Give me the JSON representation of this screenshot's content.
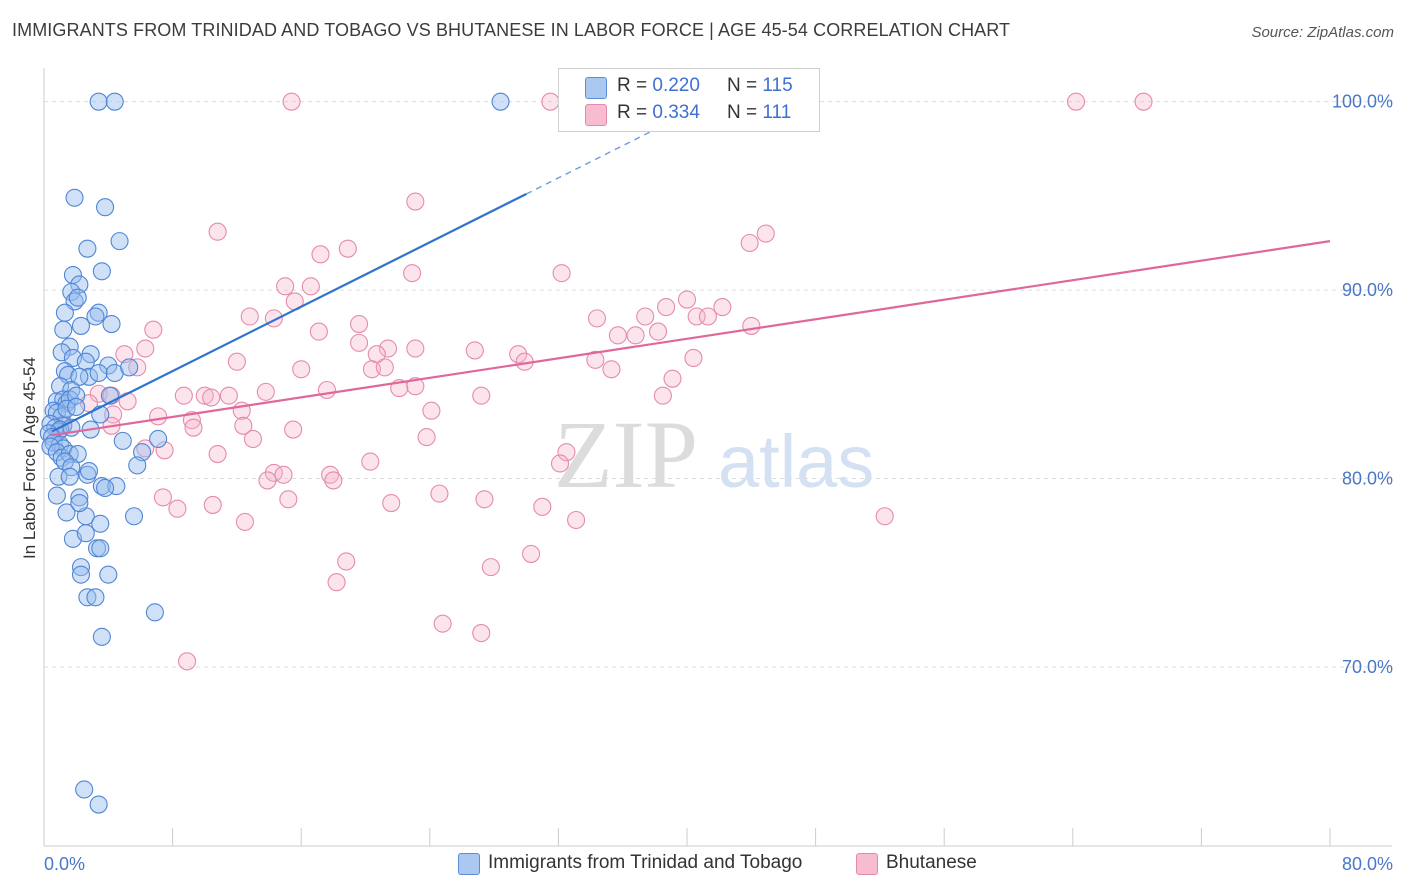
{
  "title": "IMMIGRANTS FROM TRINIDAD AND TOBAGO VS BHUTANESE IN LABOR FORCE | AGE 45-54 CORRELATION CHART",
  "source": "Source: ZipAtlas.com",
  "watermark": {
    "zip": "ZIP",
    "atlas": "atlas"
  },
  "legend": {
    "r_label": "R =",
    "n_label": "N =",
    "series": [
      {
        "name": "Immigrants from Trinidad and Tobago",
        "r": "0.220",
        "n": "115",
        "fill": "#aac8f0",
        "stroke": "#5a8fd8"
      },
      {
        "name": "Bhutanese",
        "r": "0.334",
        "n": "111",
        "fill": "#f7bcd0",
        "stroke": "#e48aab"
      }
    ]
  },
  "chart_data": {
    "type": "scatter",
    "title": "IMMIGRANTS FROM TRINIDAD AND TOBAGO VS BHUTANESE IN LABOR FORCE | AGE 45-54 CORRELATION CHART",
    "xlabel": "",
    "ylabel": "In Labor Force | Age 45-54",
    "xlim": [
      0,
      80
    ],
    "ylim": [
      60.5,
      102
    ],
    "x_tick_labels": [
      "0.0%",
      "80.0%"
    ],
    "y_ticks": [
      70,
      80,
      90,
      100
    ],
    "y_tick_labels": [
      "70.0%",
      "80.0%",
      "90.0%",
      "100.0%"
    ],
    "grid": true,
    "legend_position": "top-center",
    "colors": {
      "blue_line": "#2f72d0",
      "pink_line": "#e0679a",
      "grid": "#dddddd",
      "axis": "#cccccc"
    },
    "trendlines": [
      {
        "series": "Immigrants from Trinidad and Tobago",
        "x": [
          0.5,
          30.0
        ],
        "y": [
          82.5,
          95.1
        ],
        "dashed_extension": {
          "x": [
            30.0,
            41.0
          ],
          "y": [
            95.1,
            99.8
          ]
        }
      },
      {
        "series": "Bhutanese",
        "x": [
          0.5,
          80.0
        ],
        "y": [
          82.3,
          92.6
        ]
      }
    ],
    "series": [
      {
        "name": "Immigrants from Trinidad and Tobago",
        "points": [
          [
            3.4,
            100.0
          ],
          [
            4.4,
            100.0
          ],
          [
            28.4,
            100.0
          ],
          [
            1.9,
            94.9
          ],
          [
            3.8,
            94.4
          ],
          [
            4.7,
            92.6
          ],
          [
            2.7,
            92.2
          ],
          [
            1.8,
            90.8
          ],
          [
            3.6,
            91.0
          ],
          [
            2.2,
            90.3
          ],
          [
            1.7,
            89.9
          ],
          [
            1.9,
            89.4
          ],
          [
            2.1,
            89.6
          ],
          [
            1.3,
            88.8
          ],
          [
            3.4,
            88.8
          ],
          [
            3.2,
            88.6
          ],
          [
            2.3,
            88.1
          ],
          [
            4.2,
            88.2
          ],
          [
            1.2,
            87.9
          ],
          [
            1.6,
            87.0
          ],
          [
            1.1,
            86.7
          ],
          [
            2.9,
            86.6
          ],
          [
            1.8,
            86.4
          ],
          [
            2.6,
            86.2
          ],
          [
            4.0,
            86.0
          ],
          [
            1.3,
            85.7
          ],
          [
            1.5,
            85.5
          ],
          [
            2.8,
            85.4
          ],
          [
            3.4,
            85.6
          ],
          [
            4.4,
            85.6
          ],
          [
            5.3,
            85.9
          ],
          [
            2.2,
            85.4
          ],
          [
            1.0,
            84.9
          ],
          [
            1.7,
            84.7
          ],
          [
            0.8,
            84.1
          ],
          [
            1.2,
            84.2
          ],
          [
            1.4,
            84.0
          ],
          [
            1.6,
            84.2
          ],
          [
            2.0,
            84.4
          ],
          [
            4.1,
            84.4
          ],
          [
            0.6,
            83.6
          ],
          [
            0.8,
            83.5
          ],
          [
            1.1,
            83.3
          ],
          [
            1.4,
            83.7
          ],
          [
            2.0,
            83.8
          ],
          [
            3.5,
            83.4
          ],
          [
            1.2,
            82.8
          ],
          [
            0.4,
            82.9
          ],
          [
            0.7,
            82.7
          ],
          [
            0.9,
            82.5
          ],
          [
            1.0,
            82.6
          ],
          [
            1.7,
            82.7
          ],
          [
            0.3,
            82.4
          ],
          [
            0.5,
            82.2
          ],
          [
            2.9,
            82.6
          ],
          [
            4.9,
            82.0
          ],
          [
            7.1,
            82.1
          ],
          [
            0.6,
            81.9
          ],
          [
            1.0,
            81.8
          ],
          [
            1.2,
            81.6
          ],
          [
            0.4,
            81.7
          ],
          [
            0.8,
            81.4
          ],
          [
            1.1,
            81.1
          ],
          [
            1.6,
            81.3
          ],
          [
            2.1,
            81.3
          ],
          [
            6.1,
            81.4
          ],
          [
            1.3,
            80.9
          ],
          [
            1.7,
            80.6
          ],
          [
            0.9,
            80.1
          ],
          [
            1.6,
            80.1
          ],
          [
            2.7,
            80.2
          ],
          [
            2.8,
            80.4
          ],
          [
            3.6,
            79.6
          ],
          [
            4.5,
            79.6
          ],
          [
            5.8,
            80.7
          ],
          [
            0.8,
            79.1
          ],
          [
            2.2,
            79.0
          ],
          [
            3.8,
            79.5
          ],
          [
            1.4,
            78.2
          ],
          [
            2.6,
            78.0
          ],
          [
            3.5,
            77.6
          ],
          [
            2.2,
            78.7
          ],
          [
            5.6,
            78.0
          ],
          [
            1.8,
            76.8
          ],
          [
            2.6,
            77.1
          ],
          [
            3.3,
            76.3
          ],
          [
            3.5,
            76.3
          ],
          [
            2.3,
            75.3
          ],
          [
            2.3,
            74.9
          ],
          [
            4.0,
            74.9
          ],
          [
            2.7,
            73.7
          ],
          [
            3.2,
            73.7
          ],
          [
            6.9,
            72.9
          ],
          [
            3.6,
            71.6
          ],
          [
            2.5,
            63.5
          ],
          [
            3.4,
            62.7
          ]
        ]
      },
      {
        "name": "Bhutanese",
        "points": [
          [
            15.4,
            100.0
          ],
          [
            31.5,
            100.0
          ],
          [
            64.2,
            100.0
          ],
          [
            68.4,
            100.0
          ],
          [
            23.1,
            94.7
          ],
          [
            44.9,
            93.0
          ],
          [
            10.8,
            93.1
          ],
          [
            43.9,
            92.5
          ],
          [
            18.9,
            92.2
          ],
          [
            17.2,
            91.9
          ],
          [
            22.9,
            90.9
          ],
          [
            32.2,
            90.9
          ],
          [
            15.0,
            90.2
          ],
          [
            16.6,
            90.2
          ],
          [
            15.6,
            89.4
          ],
          [
            14.3,
            88.5
          ],
          [
            12.8,
            88.6
          ],
          [
            34.4,
            88.5
          ],
          [
            37.4,
            88.6
          ],
          [
            38.7,
            89.1
          ],
          [
            40.0,
            89.5
          ],
          [
            40.6,
            88.6
          ],
          [
            41.3,
            88.6
          ],
          [
            42.2,
            89.1
          ],
          [
            44.0,
            88.1
          ],
          [
            19.6,
            88.2
          ],
          [
            17.1,
            87.8
          ],
          [
            6.8,
            87.9
          ],
          [
            19.6,
            87.2
          ],
          [
            21.4,
            86.9
          ],
          [
            23.1,
            86.9
          ],
          [
            26.8,
            86.8
          ],
          [
            6.3,
            86.9
          ],
          [
            5.0,
            86.6
          ],
          [
            38.2,
            87.8
          ],
          [
            35.7,
            87.6
          ],
          [
            36.8,
            87.6
          ],
          [
            29.5,
            86.6
          ],
          [
            20.7,
            86.6
          ],
          [
            34.3,
            86.3
          ],
          [
            40.4,
            86.4
          ],
          [
            12.0,
            86.2
          ],
          [
            5.8,
            85.9
          ],
          [
            16.0,
            85.8
          ],
          [
            20.4,
            85.8
          ],
          [
            21.2,
            85.9
          ],
          [
            35.3,
            85.8
          ],
          [
            39.1,
            85.3
          ],
          [
            29.9,
            86.2
          ],
          [
            22.1,
            84.8
          ],
          [
            23.1,
            84.9
          ],
          [
            13.8,
            84.6
          ],
          [
            17.6,
            84.7
          ],
          [
            3.4,
            84.5
          ],
          [
            4.2,
            84.4
          ],
          [
            5.2,
            84.1
          ],
          [
            8.7,
            84.4
          ],
          [
            10.0,
            84.4
          ],
          [
            11.5,
            84.4
          ],
          [
            10.4,
            84.3
          ],
          [
            27.2,
            84.4
          ],
          [
            38.5,
            84.4
          ],
          [
            2.8,
            84.0
          ],
          [
            12.3,
            83.6
          ],
          [
            24.1,
            83.6
          ],
          [
            4.3,
            83.4
          ],
          [
            7.1,
            83.3
          ],
          [
            9.2,
            83.1
          ],
          [
            1.2,
            82.9
          ],
          [
            4.2,
            82.8
          ],
          [
            12.4,
            82.8
          ],
          [
            9.3,
            82.7
          ],
          [
            15.5,
            82.6
          ],
          [
            23.8,
            82.2
          ],
          [
            13.0,
            82.1
          ],
          [
            6.3,
            81.6
          ],
          [
            7.5,
            81.5
          ],
          [
            10.8,
            81.3
          ],
          [
            32.5,
            81.4
          ],
          [
            32.1,
            80.8
          ],
          [
            20.3,
            80.9
          ],
          [
            14.3,
            80.3
          ],
          [
            13.9,
            79.9
          ],
          [
            17.8,
            80.2
          ],
          [
            14.9,
            80.2
          ],
          [
            18.0,
            79.9
          ],
          [
            24.6,
            79.2
          ],
          [
            7.4,
            79.0
          ],
          [
            15.2,
            78.9
          ],
          [
            27.4,
            78.9
          ],
          [
            8.3,
            78.4
          ],
          [
            10.5,
            78.6
          ],
          [
            21.6,
            78.7
          ],
          [
            31.0,
            78.5
          ],
          [
            12.5,
            77.7
          ],
          [
            33.1,
            77.8
          ],
          [
            52.3,
            78.0
          ],
          [
            30.3,
            76.0
          ],
          [
            18.8,
            75.6
          ],
          [
            27.8,
            75.3
          ],
          [
            18.2,
            74.5
          ],
          [
            24.8,
            72.3
          ],
          [
            27.2,
            71.8
          ],
          [
            8.9,
            70.3
          ]
        ]
      }
    ]
  }
}
